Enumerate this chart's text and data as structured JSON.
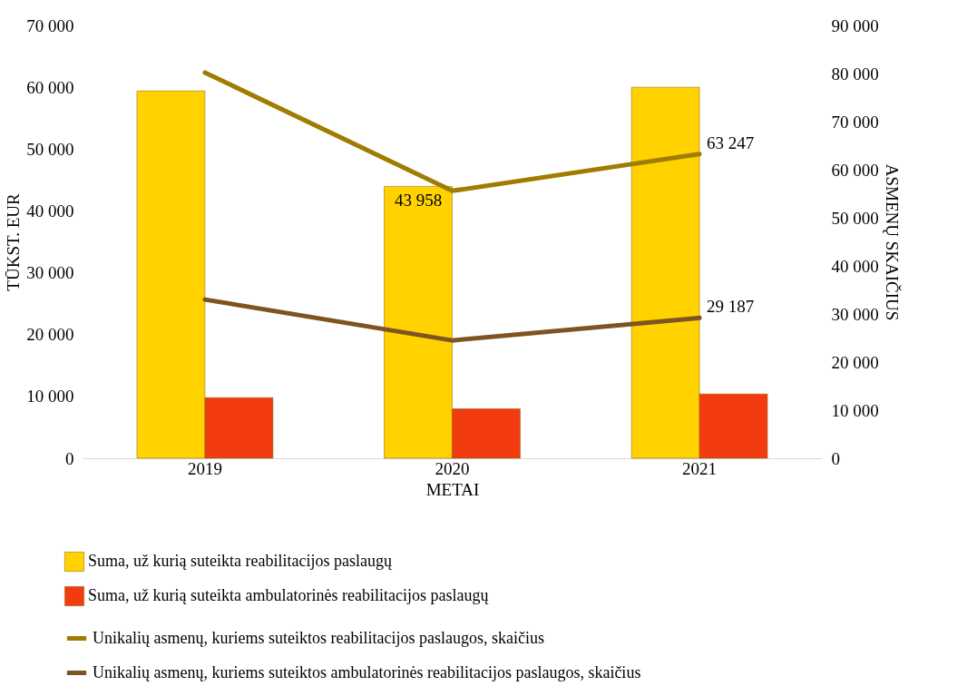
{
  "chart_data": {
    "type": "bar",
    "xlabel": "METAI",
    "ylabel": "TŪKST. EUR",
    "y2label": "ASMENŲ SKAIČIUS",
    "categories": [
      "2019",
      "2020",
      "2021"
    ],
    "series": [
      {
        "name": "Suma, už kurią suteikta reabilitacijos paslaugų",
        "color": "#ffd200",
        "values": [
          59400,
          43958,
          60000
        ],
        "value_labels": [
          null,
          "43 958",
          null
        ]
      },
      {
        "name": "Suma, už kurią suteikta ambulatorinės reabilitacijos paslaugų",
        "color": "#f23c10",
        "values": [
          9800,
          8000,
          10400
        ],
        "value_labels": [
          null,
          null,
          null
        ]
      },
      {
        "name": "Unikalių asmenų, kuriems suteiktos reabilitacijos paslaugos, skaičius",
        "type": "line",
        "axis": "y2",
        "color": "#a07c00",
        "values": [
          80200,
          55600,
          63247
        ],
        "value_labels": [
          null,
          null,
          "63 247"
        ]
      },
      {
        "name": "Unikalių asmenų, kuriems suteiktos ambulatorinės reabilitacijos paslaugos, skaičius",
        "type": "line",
        "axis": "y2",
        "color": "#7f5420",
        "values": [
          33000,
          24500,
          29187
        ],
        "value_labels": [
          null,
          null,
          "29 187"
        ]
      }
    ],
    "ylim": [
      0,
      70000
    ],
    "yticks": [
      0,
      {
        "value": 10000,
        "label": "10 000"
      },
      {
        "value": 20000,
        "label": "20 000"
      },
      {
        "value": 30000,
        "label": "30 000"
      },
      {
        "value": 40000,
        "label": "40 000"
      },
      {
        "value": 50000,
        "label": "50 000"
      },
      {
        "value": 60000,
        "label": "60 000"
      },
      {
        "value": 70000,
        "label": "70 000"
      }
    ],
    "y2lim": [
      0,
      90000
    ],
    "y2ticks": [
      0,
      {
        "value": 10000,
        "label": "10 000"
      },
      {
        "value": 20000,
        "label": "20 000"
      },
      {
        "value": 30000,
        "label": "30 000"
      },
      {
        "value": 40000,
        "label": "40 000"
      },
      {
        "value": 50000,
        "label": "50 000"
      },
      {
        "value": 60000,
        "label": "60 000"
      },
      {
        "value": 70000,
        "label": "70 000"
      },
      {
        "value": 80000,
        "label": "80 000"
      },
      {
        "value": 90000,
        "label": "90 000"
      }
    ],
    "grid": false,
    "legend": "bottom",
    "marker": "none"
  }
}
